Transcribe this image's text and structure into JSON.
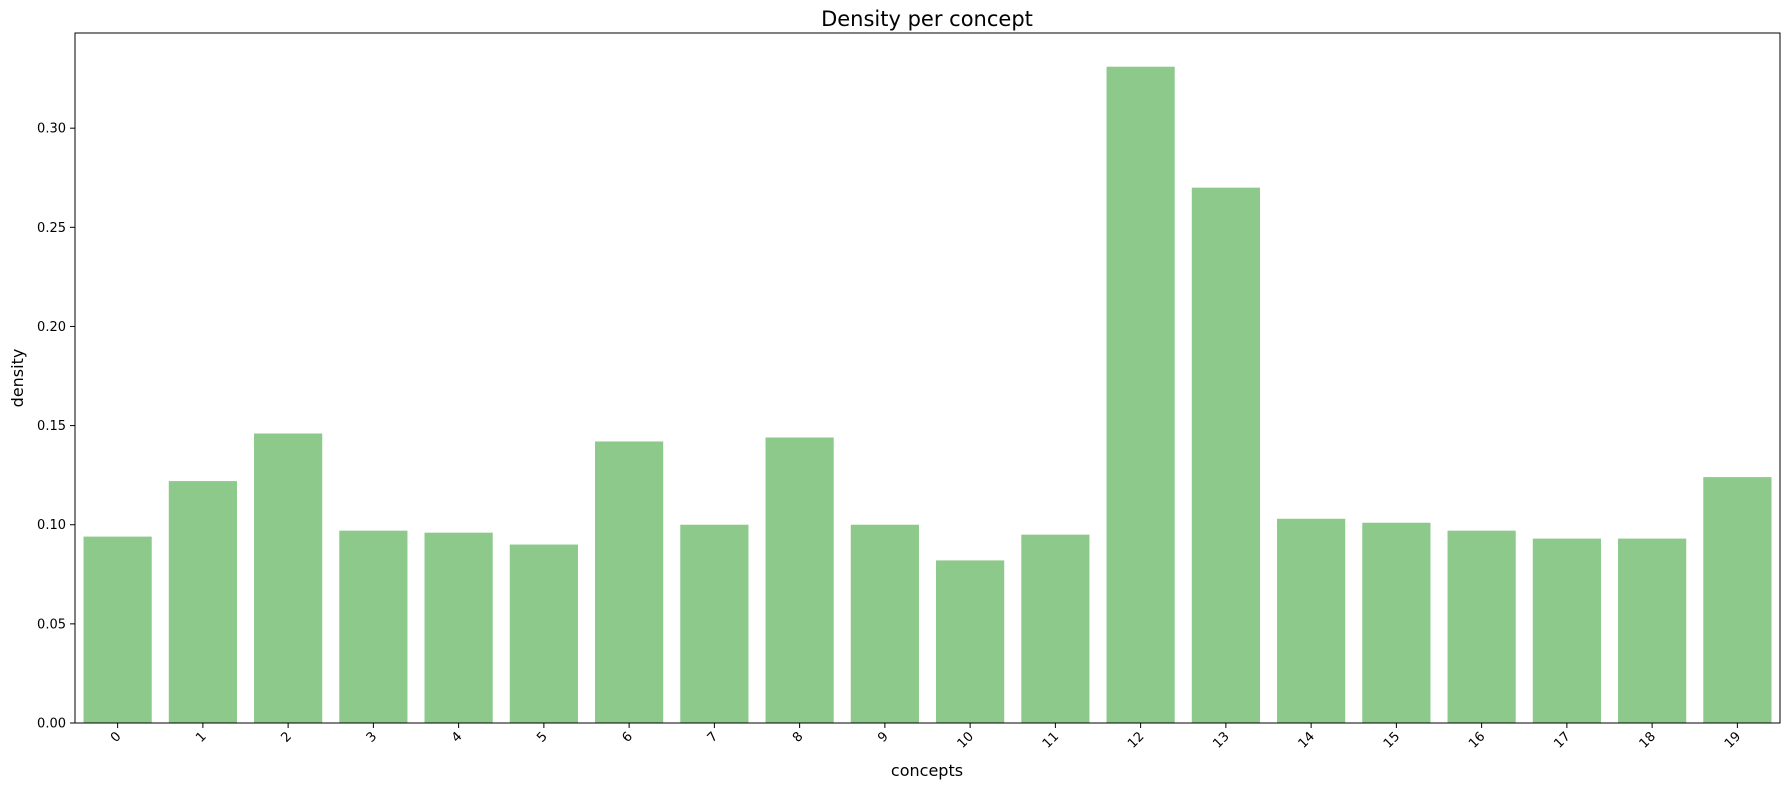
{
  "chart_data": {
    "type": "bar",
    "title": "Density per concept",
    "xlabel": "concepts",
    "ylabel": "density",
    "categories": [
      "0",
      "1",
      "2",
      "3",
      "4",
      "5",
      "6",
      "7",
      "8",
      "9",
      "10",
      "11",
      "12",
      "13",
      "14",
      "15",
      "16",
      "17",
      "18",
      "19"
    ],
    "values": [
      0.094,
      0.122,
      0.146,
      0.097,
      0.096,
      0.09,
      0.142,
      0.1,
      0.144,
      0.1,
      0.082,
      0.095,
      0.331,
      0.27,
      0.103,
      0.101,
      0.097,
      0.093,
      0.093,
      0.124
    ],
    "ylim": [
      0,
      0.348
    ],
    "yticks": [
      0.0,
      0.05,
      0.1,
      0.15,
      0.2,
      0.25,
      0.3
    ],
    "ytick_labels": [
      "0.00",
      "0.05",
      "0.10",
      "0.15",
      "0.20",
      "0.25",
      "0.30"
    ],
    "bar_color": "#8dc98b",
    "grid": false,
    "legend": "none"
  }
}
